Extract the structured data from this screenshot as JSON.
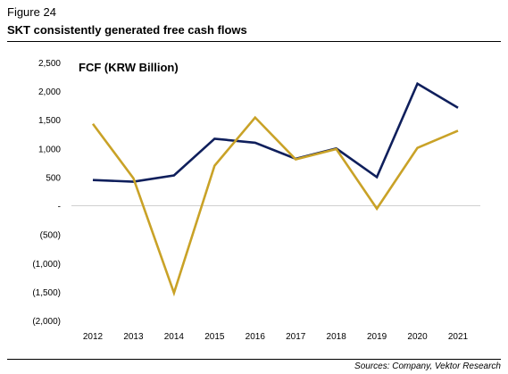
{
  "figure": {
    "label": "Figure 24",
    "title": "SKT consistently generated free cash flows",
    "source": "Sources: Company, Vektor Research"
  },
  "chart_data": {
    "type": "line",
    "title": "FCF (KRW Billion)",
    "x": [
      "2012",
      "2013",
      "2014",
      "2015",
      "2016",
      "2017",
      "2018",
      "2019",
      "2020",
      "2021"
    ],
    "ylim": [
      -2000,
      2500
    ],
    "yticks": [
      2500,
      2000,
      1500,
      1000,
      500,
      0,
      -500,
      -1000,
      -1500,
      -2000
    ],
    "ytick_labels": [
      "2,500",
      "2,000",
      "1,500",
      "1,000",
      "500",
      "-",
      "(500)",
      "(1,000)",
      "(1,500)",
      "(2,000)"
    ],
    "grid": false,
    "series": [
      {
        "key": "navy",
        "color": "#0f1f5c",
        "values": [
          450,
          420,
          530,
          1170,
          1100,
          820,
          1000,
          500,
          2130,
          1710
        ]
      },
      {
        "key": "gold",
        "color": "#c9a227",
        "values": [
          1430,
          480,
          -1520,
          700,
          1540,
          810,
          990,
          -50,
          1010,
          1310
        ]
      }
    ]
  }
}
